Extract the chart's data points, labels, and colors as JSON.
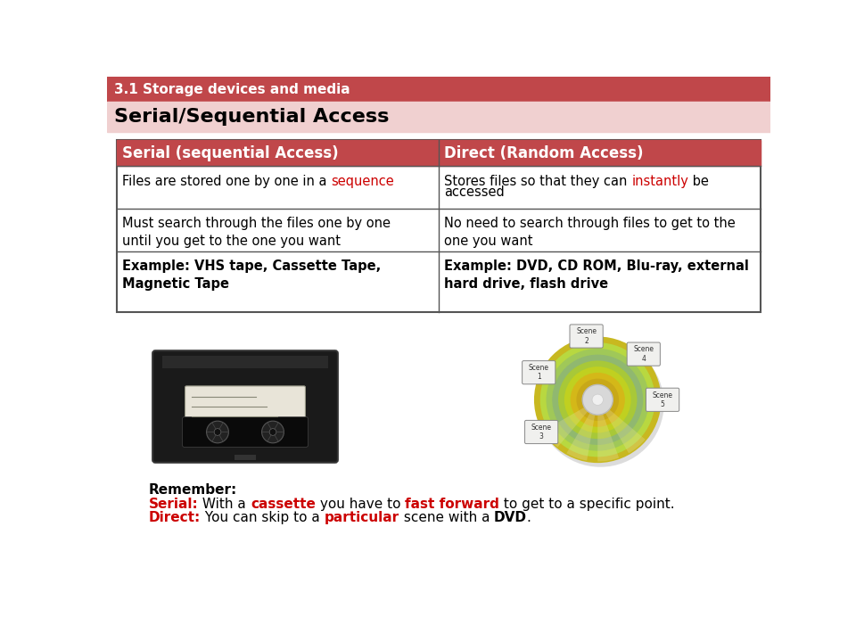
{
  "top_bar_color": "#C0474A",
  "top_bar_text": "3.1 Storage devices and media",
  "top_bar_text_color": "#FFFFFF",
  "subtitle_bg_color": "#F0D0D0",
  "subtitle_text": "Serial/Sequential Access",
  "subtitle_text_color": "#000000",
  "table_header_bg": "#C0474A",
  "table_header_text_color": "#FFFFFF",
  "table_border_color": "#555555",
  "table_bg": "#FFFFFF",
  "col1_header": "Serial (sequential Access)",
  "col2_header": "Direct (Random Access)",
  "bg_color": "#FFFFFF",
  "font_size_top": 11,
  "font_size_subtitle": 16,
  "font_size_table_header": 12,
  "font_size_table_body": 10.5,
  "font_size_remember": 11,
  "red_color": "#CC0000"
}
